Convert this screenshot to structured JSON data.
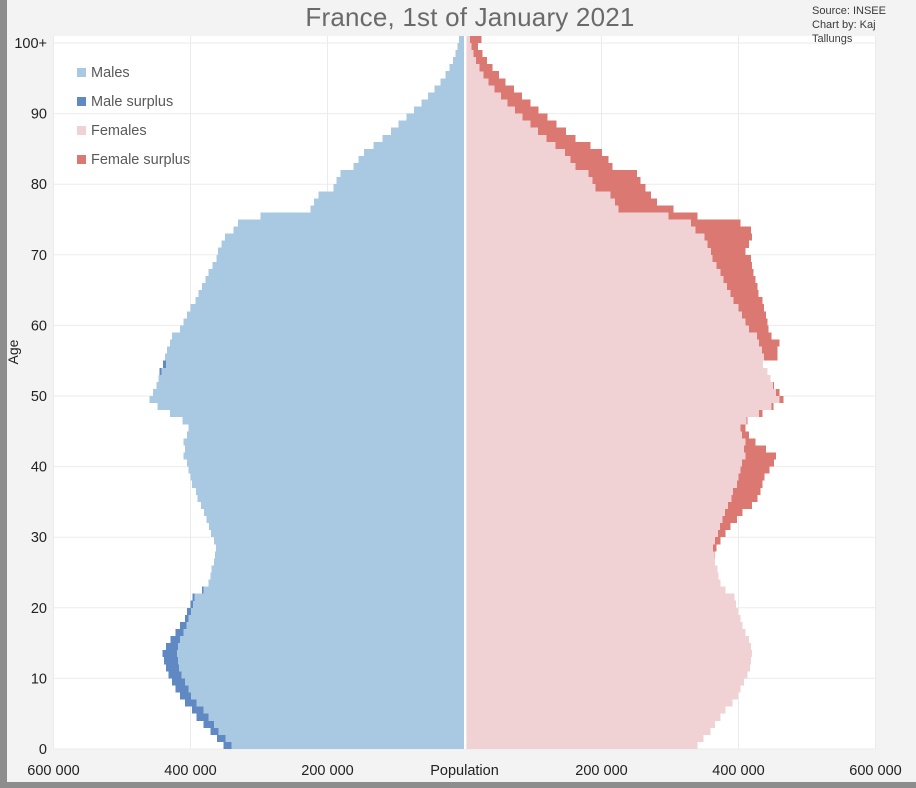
{
  "header": {
    "title": "France, 1st of January 2021",
    "source_line1": "Source: INSEE",
    "source_line2": "Chart by: Kaj Tallungs"
  },
  "legend": {
    "position": "top-left",
    "items": [
      {
        "label": "Males",
        "color_key": "males"
      },
      {
        "label": "Male surplus",
        "color_key": "male_surplus"
      },
      {
        "label": "Females",
        "color_key": "females"
      },
      {
        "label": "Female surplus",
        "color_key": "female_surplus"
      }
    ]
  },
  "axes": {
    "x_title": "Population",
    "y_title": "Age",
    "x_tick_labels": [
      "600 000",
      "400 000",
      "200 000"
    ],
    "x_tick_values": [
      600000,
      400000,
      200000
    ],
    "y_tick_labels": [
      "0",
      "10",
      "20",
      "30",
      "40",
      "50",
      "60",
      "70",
      "80",
      "90",
      "100+"
    ],
    "x_max": 600000
  },
  "colors": {
    "males": "#a9c9e3",
    "male_surplus": "#6089c3",
    "females": "#f0d2d5",
    "female_surplus": "#dc7872",
    "grid": "#ebebeb",
    "plot_bg": "#ffffff",
    "page_bg": "#f3f3f3",
    "title_text": "#6a6a6a",
    "axis_text": "#222222",
    "legend_text": "#595959",
    "window_edge": "#8d8d8d"
  },
  "chart_data": {
    "type": "bar",
    "subtype": "population_pyramid",
    "title": "France, 1st of January 2021",
    "xlabel": "Population",
    "ylabel": "Age",
    "x_range": [
      -600000,
      600000
    ],
    "grid": true,
    "legend_position": "top-left",
    "age_min": 0,
    "age_max": 100,
    "age_note": "index = single year of age 0..99; index 100 = ages 100 and over",
    "surplus_note": "male surplus = males-females where males>females (dark blue tip, ages ~0-22); female surplus = females-males where females>males (red tip, ages ~28 and up)",
    "series": [
      {
        "name": "Males",
        "side": "left",
        "values": [
          352000,
          361000,
          371000,
          381000,
          391000,
          398000,
          408000,
          415000,
          422000,
          427000,
          432000,
          436000,
          439000,
          441000,
          436000,
          429000,
          422000,
          415000,
          408000,
          405000,
          400000,
          397000,
          383000,
          374000,
          371000,
          369000,
          366000,
          364000,
          363000,
          366000,
          370000,
          373000,
          377000,
          380000,
          385000,
          390000,
          392000,
          398000,
          400000,
          403000,
          405000,
          410000,
          408000,
          410000,
          405000,
          403000,
          412000,
          430000,
          448000,
          460000,
          455000,
          450000,
          447000,
          445000,
          440000,
          437000,
          434000,
          430000,
          427000,
          415000,
          410000,
          405000,
          400000,
          393000,
          388000,
          383000,
          378000,
          374000,
          368000,
          362000,
          360000,
          355000,
          350000,
          337000,
          331000,
          298000,
          225000,
          220000,
          213000,
          191000,
          187000,
          181000,
          162000,
          155000,
          147000,
          133000,
          120000,
          107000,
          96000,
          85000,
          74000,
          63000,
          53000,
          44000,
          35000,
          28000,
          22000,
          17000,
          13000,
          10000,
          8000
        ]
      },
      {
        "name": "Females",
        "side": "right",
        "values": [
          340000,
          349000,
          359000,
          366000,
          374000,
          381000,
          391000,
          399000,
          403000,
          408000,
          413000,
          417000,
          418000,
          420000,
          418000,
          415000,
          410000,
          406000,
          403000,
          399000,
          396000,
          394000,
          381000,
          374000,
          371000,
          369000,
          366000,
          365000,
          368000,
          374000,
          381000,
          388000,
          398000,
          406000,
          420000,
          428000,
          432000,
          435000,
          438000,
          445000,
          452000,
          455000,
          440000,
          425000,
          415000,
          410000,
          413000,
          435000,
          451000,
          466000,
          460000,
          452000,
          447000,
          442000,
          436000,
          457000,
          457000,
          460000,
          448000,
          444000,
          442000,
          440000,
          437000,
          435000,
          429000,
          428000,
          425000,
          422000,
          420000,
          418000,
          410000,
          415000,
          420000,
          418000,
          403000,
          340000,
          305000,
          281000,
          272000,
          264000,
          257000,
          252000,
          216000,
          210000,
          201000,
          184000,
          162000,
          148000,
          134000,
          121000,
          108000,
          96000,
          84000,
          72000,
          60000,
          50000,
          41000,
          33000,
          26000,
          20000,
          25000
        ]
      }
    ]
  }
}
